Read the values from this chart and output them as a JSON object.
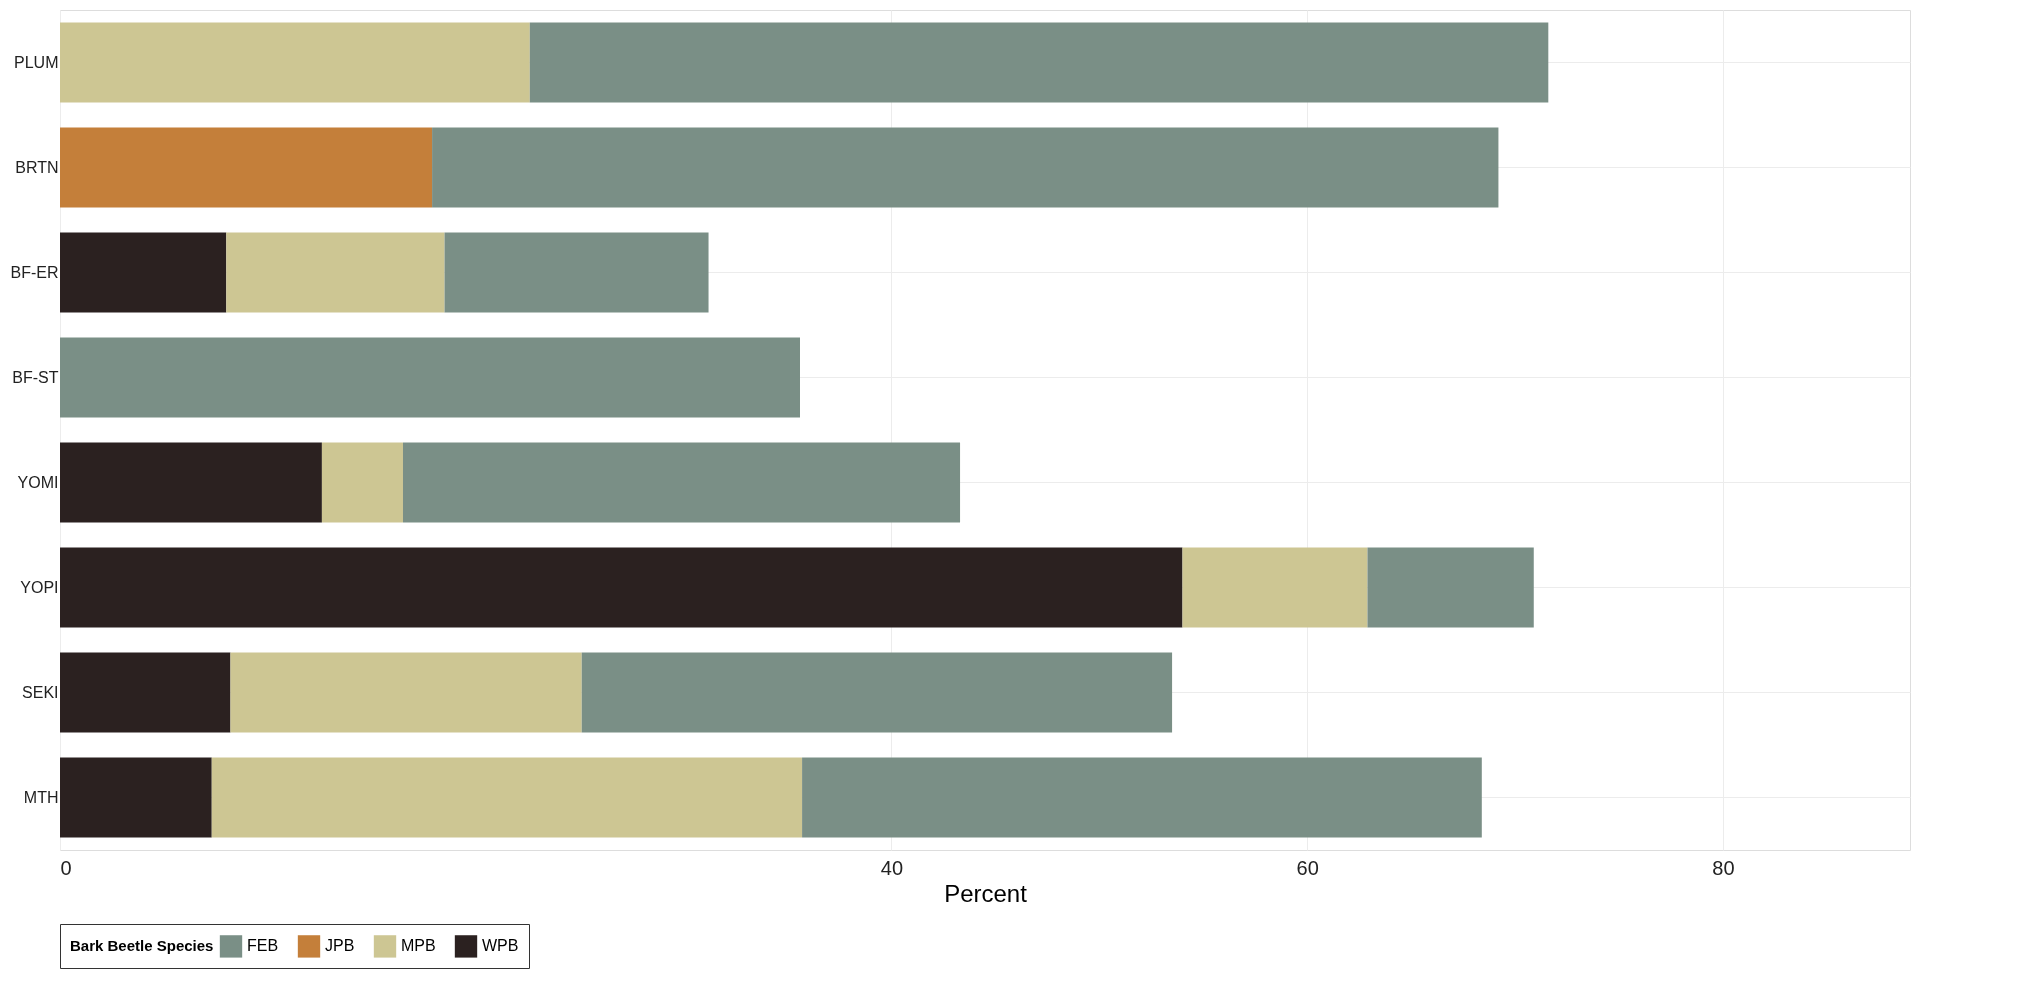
{
  "chart_data": {
    "type": "bar",
    "orientation": "horizontal",
    "stacked": true,
    "xlabel": "Percent",
    "legend_title": "Bark Beetle Species",
    "legend": "bottom",
    "grid": true,
    "categories": [
      "PLUM",
      "BRTN",
      "BF-ER",
      "BF-ST",
      "YOMI",
      "YOPI",
      "SEKI",
      "MTH"
    ],
    "xlim": [
      0,
      89
    ],
    "xticks": [
      0,
      40,
      60,
      80
    ],
    "series": [
      {
        "name": "WPB",
        "color": "#2b2120",
        "values": [
          null,
          null,
          8.0,
          null,
          12.6,
          54.0,
          8.2,
          7.3
        ]
      },
      {
        "name": "MPB",
        "color": "#cdc693",
        "values": [
          22.6,
          null,
          10.5,
          null,
          3.9,
          8.9,
          16.9,
          28.4
        ]
      },
      {
        "name": "JPB",
        "color": "#c47f3a",
        "values": [
          null,
          17.9,
          null,
          null,
          null,
          null,
          null,
          null
        ]
      },
      {
        "name": "FEB",
        "color": "#7a8f86",
        "values": [
          49.0,
          51.3,
          12.7,
          35.6,
          26.8,
          8.0,
          28.4,
          32.7
        ]
      }
    ]
  }
}
